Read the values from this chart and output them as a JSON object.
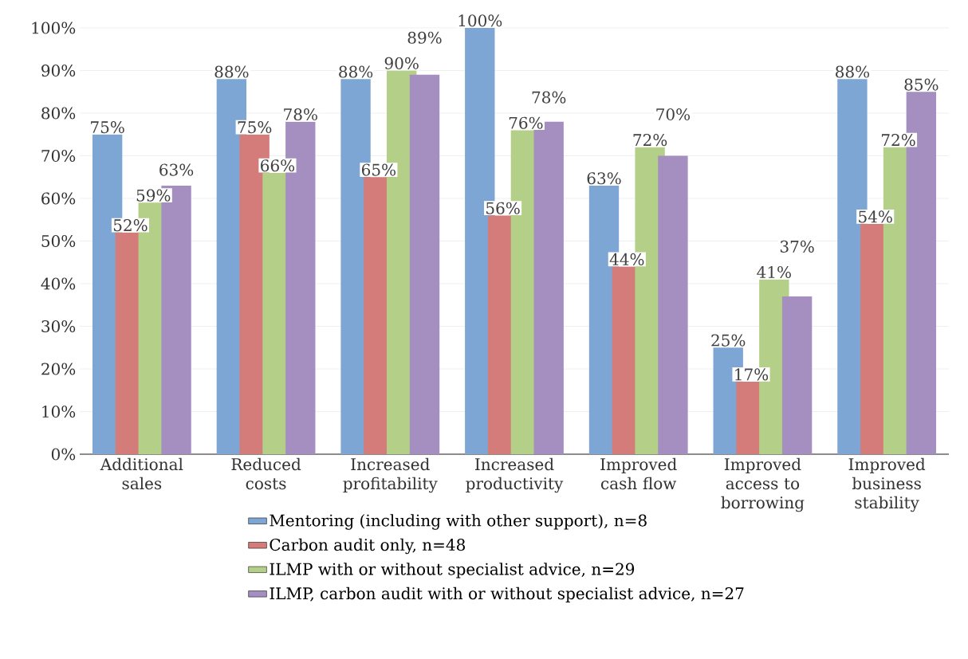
{
  "chart_data": {
    "type": "bar",
    "categories": [
      "Additional sales",
      "Reduced costs",
      "Increased profitability",
      "Increased productivity",
      "Improved cash flow",
      "Improved access to borrowing",
      "Improved business stability"
    ],
    "series": [
      {
        "name": "Mentoring (including with other support), n=8",
        "color": "#7ea6d4",
        "values": [
          75,
          88,
          88,
          100,
          63,
          25,
          88
        ],
        "value_labels": [
          "75%",
          "88%",
          "88%",
          "100%",
          "63%",
          "25%",
          "88%"
        ]
      },
      {
        "name": "Carbon audit only, n=48",
        "color": "#d47c7a",
        "values": [
          52,
          75,
          65,
          56,
          44,
          17,
          54
        ],
        "value_labels": [
          "52%",
          "75%",
          "65%",
          "56%",
          "44%",
          "17%",
          "54%"
        ]
      },
      {
        "name": "ILMP with or without specialist advice, n=29",
        "color": "#b3cf88",
        "values": [
          59,
          66,
          90,
          76,
          72,
          41,
          72
        ],
        "value_labels": [
          "59%",
          "66%",
          "90%",
          "76%",
          "72%",
          "41%",
          "72%"
        ]
      },
      {
        "name": "ILMP, carbon audit with or without specialist advice, n=27",
        "color": "#a48fc0",
        "values": [
          63,
          78,
          89,
          78,
          70,
          37,
          85
        ],
        "value_labels": [
          "63%",
          "78%",
          "89%",
          "78%",
          "70%",
          "37%",
          "85%"
        ]
      }
    ],
    "ylim": [
      0,
      100
    ],
    "yticks": [
      {
        "value": 0,
        "label": "0%"
      },
      {
        "value": 10,
        "label": "10%"
      },
      {
        "value": 20,
        "label": "20%"
      },
      {
        "value": 30,
        "label": "30%"
      },
      {
        "value": 40,
        "label": "40%"
      },
      {
        "value": 50,
        "label": "50%"
      },
      {
        "value": 60,
        "label": "60%"
      },
      {
        "value": 70,
        "label": "70%"
      },
      {
        "value": 80,
        "label": "80%"
      },
      {
        "value": 90,
        "label": "90%"
      },
      {
        "value": 100,
        "label": "100%"
      }
    ],
    "grid": "y",
    "legend": "bottom"
  }
}
